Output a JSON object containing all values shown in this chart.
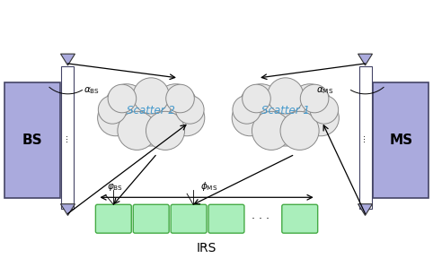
{
  "bg_color": "#ffffff",
  "bs_color": "#aaaadd",
  "ms_color": "#aaaadd",
  "bs_label": "BS",
  "ms_label": "MS",
  "cloud_color": "#e8e8e8",
  "cloud_edge": "#888888",
  "irs_box_color": "#aaeebb",
  "irs_box_edge": "#44aa44",
  "irs_label": "IRS",
  "scatter1_label": "Scatter 1",
  "scatter2_label": "Scatter 2",
  "scatter_text_color": "#4499cc",
  "arrow_color": "#111111",
  "alpha_bs_label": "$\\alpha_{\\mathrm{BS}}$",
  "alpha_ms_label": "$\\alpha_{\\mathrm{MS}}$",
  "phi_bs_label": "$\\varphi_{\\mathrm{BS}}$",
  "phi_ms_label": "$\\phi_{\\mathrm{MS}}$"
}
